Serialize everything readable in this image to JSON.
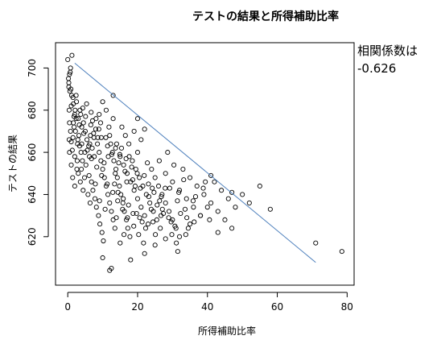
{
  "chart_data": {
    "type": "scatter",
    "title": "テストの結果と所得補助比率",
    "xlabel": "所得補助比率",
    "ylabel": "テストの結果",
    "xlim": [
      -3.5,
      82
    ],
    "ylim": [
      597,
      712
    ],
    "xticks": [
      0,
      20,
      40,
      60,
      80
    ],
    "yticks": [
      620,
      640,
      660,
      680,
      700
    ],
    "grid": false,
    "annotation": {
      "line1": "相関係数は",
      "line2": "-0.626"
    },
    "regression_line": {
      "x": [
        2,
        71
      ],
      "y": [
        702.3,
        607.8
      ]
    },
    "points": [
      [
        0.0,
        704
      ],
      [
        0.5,
        697
      ],
      [
        0.3,
        691
      ],
      [
        1.2,
        706
      ],
      [
        0.8,
        700
      ],
      [
        0.2,
        695
      ],
      [
        0.6,
        689
      ],
      [
        1.5,
        686
      ],
      [
        0.4,
        680
      ],
      [
        1.0,
        682
      ],
      [
        2.0,
        678
      ],
      [
        2.5,
        684
      ],
      [
        1.8,
        672
      ],
      [
        3.0,
        676
      ],
      [
        3.5,
        680
      ],
      [
        2.2,
        670
      ],
      [
        1.0,
        665
      ],
      [
        0.5,
        660
      ],
      [
        1.5,
        667
      ],
      [
        2.8,
        664
      ],
      [
        3.2,
        668
      ],
      [
        4.0,
        672
      ],
      [
        4.5,
        674
      ],
      [
        5.0,
        670
      ],
      [
        5.5,
        666
      ],
      [
        6.0,
        663
      ],
      [
        6.5,
        668
      ],
      [
        3.8,
        660
      ],
      [
        4.2,
        656
      ],
      [
        2.6,
        652
      ],
      [
        1.4,
        648
      ],
      [
        2.0,
        644
      ],
      [
        3.0,
        650
      ],
      [
        4.8,
        648
      ],
      [
        5.2,
        654
      ],
      [
        6.2,
        658
      ],
      [
        7.0,
        662
      ],
      [
        7.5,
        667
      ],
      [
        8.0,
        671
      ],
      [
        8.5,
        664
      ],
      [
        9.0,
        660
      ],
      [
        9.5,
        656
      ],
      [
        10.0,
        652
      ],
      [
        10.5,
        648
      ],
      [
        11.0,
        644
      ],
      [
        11.5,
        640
      ],
      [
        12.0,
        636
      ],
      [
        12.5,
        632
      ],
      [
        13.0,
        628
      ],
      [
        13.5,
        624
      ],
      [
        6.8,
        646
      ],
      [
        7.2,
        642
      ],
      [
        7.8,
        638
      ],
      [
        8.2,
        634
      ],
      [
        8.8,
        630
      ],
      [
        9.2,
        626
      ],
      [
        9.8,
        622
      ],
      [
        10.2,
        618
      ],
      [
        5.8,
        640
      ],
      [
        6.4,
        636
      ],
      [
        4.4,
        642
      ],
      [
        3.6,
        646
      ],
      [
        12.0,
        668
      ],
      [
        12.8,
        660
      ],
      [
        13.2,
        656
      ],
      [
        13.8,
        652
      ],
      [
        14.2,
        648
      ],
      [
        14.8,
        644
      ],
      [
        15.2,
        640
      ],
      [
        15.8,
        636
      ],
      [
        16.2,
        632
      ],
      [
        16.8,
        628
      ],
      [
        17.2,
        624
      ],
      [
        17.8,
        620
      ],
      [
        14.0,
        664
      ],
      [
        15.0,
        658
      ],
      [
        16.0,
        654
      ],
      [
        17.0,
        650
      ],
      [
        18.0,
        646
      ],
      [
        19.0,
        642
      ],
      [
        20.0,
        638
      ],
      [
        21.0,
        634
      ],
      [
        22.0,
        630
      ],
      [
        23.0,
        626
      ],
      [
        18.5,
        656
      ],
      [
        19.5,
        652
      ],
      [
        20.5,
        648
      ],
      [
        21.5,
        644
      ],
      [
        22.5,
        640
      ],
      [
        23.5,
        636
      ],
      [
        24.5,
        632
      ],
      [
        25.5,
        628
      ],
      [
        26.5,
        624
      ],
      [
        20.0,
        660
      ],
      [
        21.0,
        666
      ],
      [
        19.0,
        670
      ],
      [
        17.5,
        664
      ],
      [
        16.5,
        668
      ],
      [
        15.5,
        672
      ],
      [
        13.0,
        676
      ],
      [
        11.0,
        680
      ],
      [
        10.0,
        684
      ],
      [
        9.0,
        678
      ],
      [
        24.0,
        652
      ],
      [
        25.0,
        648
      ],
      [
        26.0,
        644
      ],
      [
        27.0,
        640
      ],
      [
        28.0,
        636
      ],
      [
        29.0,
        632
      ],
      [
        30.0,
        628
      ],
      [
        31.0,
        624
      ],
      [
        32.0,
        620
      ],
      [
        28.0,
        650
      ],
      [
        30.0,
        646
      ],
      [
        32.0,
        642
      ],
      [
        34.0,
        638
      ],
      [
        36.0,
        634
      ],
      [
        38.0,
        630
      ],
      [
        33.0,
        652
      ],
      [
        35.0,
        648
      ],
      [
        37.0,
        644
      ],
      [
        39.0,
        640
      ],
      [
        41.0,
        636
      ],
      [
        43.0,
        632
      ],
      [
        42.0,
        646
      ],
      [
        44.0,
        642
      ],
      [
        46.0,
        638
      ],
      [
        48.0,
        634
      ],
      [
        45.0,
        628
      ],
      [
        47.0,
        624
      ],
      [
        50.0,
        640
      ],
      [
        52.0,
        636
      ],
      [
        55.0,
        644
      ],
      [
        58.0,
        633
      ],
      [
        41.0,
        649
      ],
      [
        47.0,
        641
      ],
      [
        71.0,
        617
      ],
      [
        78.5,
        613
      ],
      [
        43.0,
        622
      ],
      [
        34.5,
        624
      ],
      [
        31.5,
        613
      ],
      [
        18.0,
        609
      ],
      [
        12.5,
        605
      ],
      [
        12.0,
        604
      ],
      [
        10.0,
        610
      ],
      [
        15.0,
        617
      ],
      [
        22.0,
        612
      ],
      [
        25.0,
        616
      ],
      [
        28.0,
        619
      ],
      [
        35.0,
        626
      ],
      [
        38.0,
        630
      ],
      [
        40.0,
        634
      ],
      [
        13.0,
        687
      ],
      [
        20.0,
        676
      ],
      [
        22.0,
        671
      ],
      [
        4.0,
        664
      ],
      [
        2.0,
        658
      ],
      [
        1.0,
        654
      ],
      [
        0.5,
        674
      ],
      [
        1.8,
        677
      ],
      [
        3.3,
        673
      ],
      [
        6.6,
        673
      ],
      [
        7.4,
        669
      ],
      [
        8.6,
        667
      ],
      [
        11.4,
        663
      ],
      [
        12.6,
        659
      ],
      [
        14.6,
        655
      ],
      [
        16.4,
        651
      ],
      [
        18.6,
        647
      ],
      [
        20.8,
        643
      ],
      [
        23.2,
        639
      ],
      [
        25.6,
        635
      ],
      [
        27.4,
        631
      ],
      [
        29.6,
        627
      ],
      [
        2.4,
        687
      ],
      [
        1.6,
        683
      ],
      [
        0.9,
        690
      ],
      [
        0.3,
        693
      ],
      [
        0.7,
        698
      ],
      [
        1.1,
        687
      ],
      [
        3.4,
        663
      ],
      [
        5.6,
        661
      ],
      [
        6.8,
        657
      ],
      [
        8.3,
        653
      ],
      [
        9.7,
        649
      ],
      [
        11.3,
        645
      ],
      [
        12.9,
        641
      ],
      [
        14.3,
        637
      ],
      [
        15.7,
        633
      ],
      [
        17.1,
        629
      ],
      [
        18.9,
        625
      ],
      [
        20.3,
        621
      ],
      [
        21.7,
        617
      ],
      [
        5.1,
        677
      ],
      [
        4.6,
        669
      ],
      [
        2.9,
        666
      ],
      [
        7.6,
        658
      ],
      [
        10.4,
        655
      ],
      [
        13.6,
        650
      ],
      [
        16.9,
        646
      ],
      [
        19.3,
        644
      ],
      [
        24.2,
        643
      ],
      [
        26.8,
        639
      ],
      [
        29.2,
        643
      ],
      [
        31.4,
        637
      ],
      [
        33.6,
        633
      ],
      [
        36.2,
        627
      ],
      [
        39.4,
        646
      ],
      [
        22.8,
        655
      ],
      [
        26.2,
        656
      ],
      [
        28.6,
        660
      ],
      [
        30.4,
        654
      ],
      [
        17.6,
        658
      ],
      [
        15.4,
        662
      ],
      [
        11.8,
        672
      ],
      [
        9.4,
        674
      ],
      [
        6.1,
        649
      ],
      [
        7.9,
        645
      ],
      [
        9.1,
        637
      ],
      [
        10.7,
        633
      ],
      [
        13.9,
        629
      ],
      [
        16.1,
        621
      ],
      [
        19.7,
        631
      ],
      [
        21.3,
        627
      ],
      [
        23.9,
        633
      ],
      [
        25.1,
        621
      ],
      [
        27.9,
        643
      ],
      [
        31.8,
        641
      ],
      [
        33.2,
        647
      ],
      [
        36.6,
        639
      ],
      [
        38.8,
        643
      ],
      [
        40.6,
        628
      ],
      [
        1.3,
        661
      ],
      [
        2.7,
        656
      ],
      [
        3.9,
        652
      ],
      [
        4.9,
        660
      ],
      [
        6.3,
        664
      ],
      [
        7.1,
        675
      ],
      [
        8.9,
        671
      ],
      [
        10.9,
        667
      ],
      [
        12.3,
        664
      ],
      [
        13.7,
        662
      ],
      [
        14.9,
        659
      ],
      [
        16.7,
        657
      ],
      [
        18.3,
        653
      ],
      [
        19.9,
        650
      ],
      [
        21.9,
        649
      ],
      [
        23.1,
        645
      ],
      [
        24.7,
        641
      ],
      [
        26.3,
        637
      ],
      [
        27.1,
        633
      ],
      [
        28.9,
        629
      ],
      [
        30.7,
        625
      ],
      [
        32.3,
        631
      ],
      [
        34.1,
        629
      ],
      [
        35.9,
        637
      ],
      [
        0.4,
        666
      ],
      [
        0.8,
        670
      ],
      [
        1.6,
        674
      ],
      [
        2.1,
        680
      ],
      [
        2.4,
        676
      ],
      [
        3.7,
        678
      ],
      [
        4.3,
        681
      ],
      [
        5.4,
        683
      ],
      [
        6.7,
        679
      ],
      [
        8.1,
        676
      ],
      [
        9.6,
        667
      ],
      [
        11.6,
        658
      ],
      [
        13.4,
        645
      ],
      [
        14.4,
        641
      ],
      [
        15.9,
        638
      ],
      [
        17.4,
        635
      ],
      [
        18.7,
        631
      ],
      [
        20.6,
        629
      ],
      [
        22.3,
        624
      ],
      [
        24.4,
        627
      ],
      [
        26.7,
        630
      ],
      [
        29.8,
        621
      ],
      [
        31.1,
        617
      ],
      [
        33.8,
        621
      ]
    ]
  }
}
